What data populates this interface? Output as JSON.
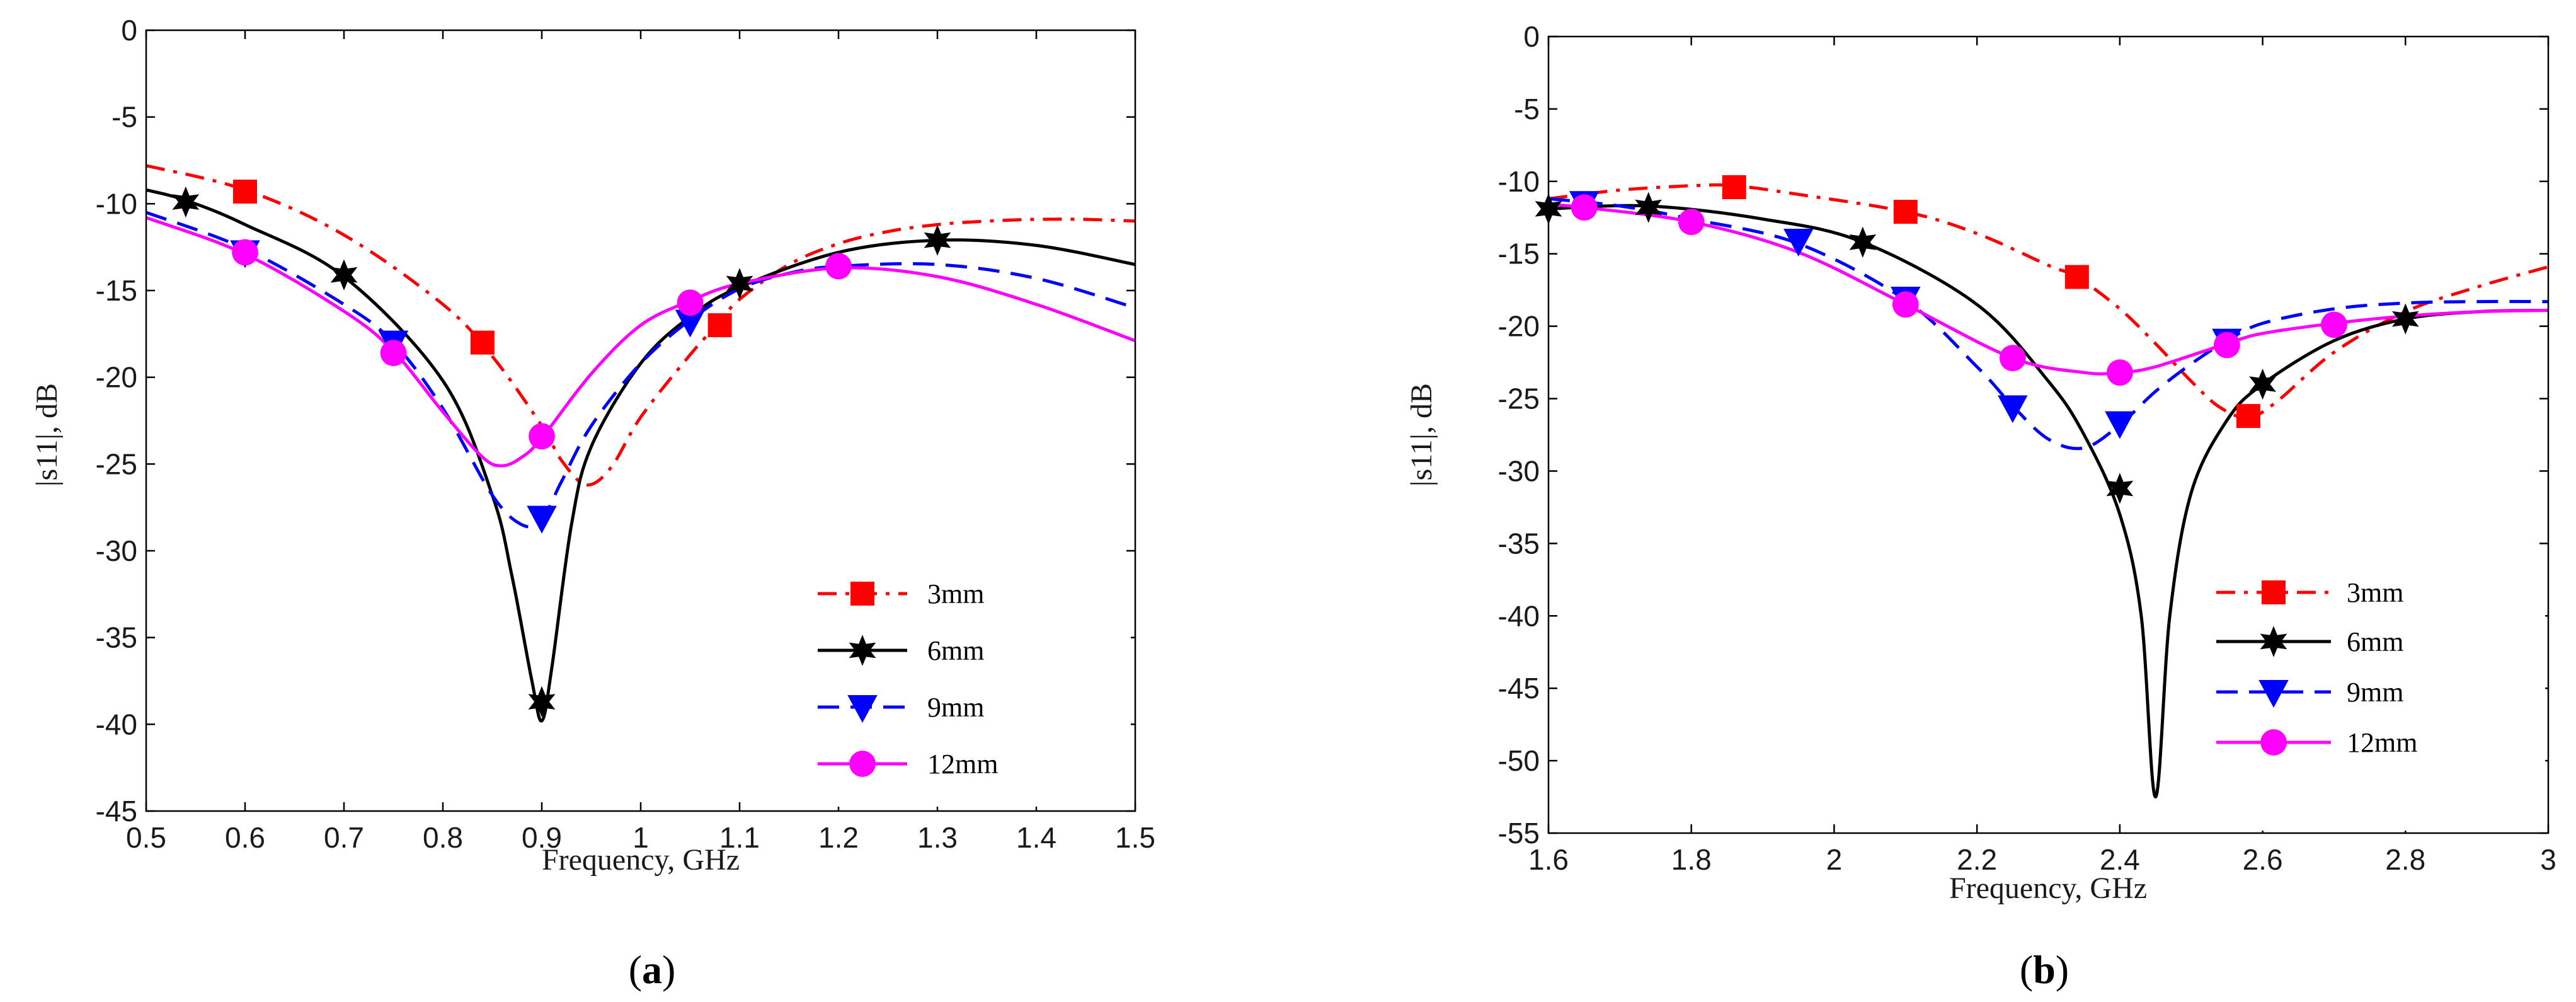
{
  "chart_data": [
    {
      "type": "line",
      "panel_label": "a",
      "title": "",
      "xlabel": "Frequency, GHz",
      "ylabel": "|s11|, dB",
      "xlim": [
        0.5,
        1.5
      ],
      "ylim": [
        -45,
        0
      ],
      "xticks": [
        0.5,
        0.6,
        0.7,
        0.8,
        0.9,
        1,
        1.1,
        1.2,
        1.3,
        1.4,
        1.5
      ],
      "xtick_labels": [
        "0.5",
        "0.6",
        "0.7",
        "0.8",
        "0.9",
        "1",
        "1.1",
        "1.2",
        "1.3",
        "1.4",
        "1.5"
      ],
      "yticks": [
        0,
        -5,
        -10,
        -15,
        -20,
        -25,
        -30,
        -35,
        -40,
        -45
      ],
      "ytick_labels": [
        "0",
        "-5",
        "-10",
        "-15",
        "-20",
        "-25",
        "-30",
        "-35",
        "-40",
        "-45"
      ],
      "legend_position": "bottom-right",
      "series": [
        {
          "name": "3mm",
          "color": "#ff0000",
          "dash": "dashdot",
          "marker": "square",
          "x": [
            0.5,
            0.6,
            0.7,
            0.8,
            0.85,
            0.9,
            0.92,
            0.945,
            0.97,
            1.0,
            1.05,
            1.08,
            1.1,
            1.15,
            1.2,
            1.25,
            1.3,
            1.35,
            1.4,
            1.45,
            1.5
          ],
          "y": [
            -7.8,
            -9.2,
            -11.8,
            -15.8,
            -18.8,
            -22.8,
            -24.8,
            -26.2,
            -25.2,
            -22.3,
            -18.7,
            -16.8,
            -15.5,
            -13.5,
            -12.3,
            -11.6,
            -11.2,
            -11.0,
            -10.9,
            -10.9,
            -11.0
          ],
          "markers_x": [
            0.6,
            0.84,
            1.08
          ],
          "markers_y": [
            -9.3,
            -18.0,
            -17.0
          ]
        },
        {
          "name": "6mm",
          "color": "#000000",
          "dash": "solid",
          "marker": "star",
          "x": [
            0.5,
            0.54,
            0.6,
            0.7,
            0.8,
            0.85,
            0.87,
            0.89,
            0.9,
            0.91,
            0.93,
            0.95,
            1.0,
            1.05,
            1.1,
            1.2,
            1.3,
            1.4,
            1.5
          ],
          "y": [
            -9.2,
            -9.8,
            -11.2,
            -14.2,
            -20.2,
            -26.8,
            -31.5,
            -37.5,
            -39.8,
            -36.8,
            -28.5,
            -24.0,
            -19.2,
            -16.5,
            -14.8,
            -12.8,
            -12.1,
            -12.4,
            -13.5
          ],
          "markers_x": [
            0.54,
            0.7,
            0.9,
            1.1,
            1.3
          ],
          "markers_y": [
            -9.9,
            -14.1,
            -38.7,
            -14.6,
            -12.1
          ]
        },
        {
          "name": "9mm",
          "color": "#0000ff",
          "dash": "dashed",
          "marker": "triangle-down",
          "x": [
            0.5,
            0.6,
            0.7,
            0.75,
            0.8,
            0.85,
            0.88,
            0.9,
            0.92,
            0.95,
            1.0,
            1.05,
            1.1,
            1.15,
            1.2,
            1.3,
            1.4,
            1.5
          ],
          "y": [
            -10.5,
            -12.6,
            -15.8,
            -18.0,
            -21.8,
            -26.8,
            -28.5,
            -28.2,
            -26.0,
            -22.8,
            -19.2,
            -16.7,
            -14.9,
            -14.0,
            -13.6,
            -13.5,
            -14.3,
            -16.0
          ],
          "markers_x": [
            0.6,
            0.75,
            0.9,
            1.05
          ],
          "markers_y": [
            -12.8,
            -18.0,
            -28.1,
            -16.8
          ]
        },
        {
          "name": "12mm",
          "color": "#ff00ff",
          "dash": "solid",
          "marker": "circle",
          "x": [
            0.5,
            0.6,
            0.7,
            0.75,
            0.8,
            0.84,
            0.86,
            0.88,
            0.9,
            0.95,
            1.0,
            1.05,
            1.1,
            1.2,
            1.3,
            1.4,
            1.5
          ],
          "y": [
            -10.8,
            -12.9,
            -16.2,
            -18.5,
            -22.0,
            -24.6,
            -25.1,
            -24.6,
            -23.5,
            -19.8,
            -17.0,
            -15.6,
            -14.6,
            -13.7,
            -14.2,
            -15.8,
            -17.9
          ],
          "markers_x": [
            0.6,
            0.75,
            0.9,
            1.05,
            1.2
          ],
          "markers_y": [
            -12.8,
            -18.6,
            -23.4,
            -15.7,
            -13.6
          ]
        }
      ]
    },
    {
      "type": "line",
      "panel_label": "b",
      "title": "",
      "xlabel": "Frequency, GHz",
      "ylabel": "|s11|, dB",
      "xlim": [
        1.6,
        3
      ],
      "ylim": [
        -55,
        0
      ],
      "xticks": [
        1.6,
        1.8,
        2,
        2.2,
        2.4,
        2.6,
        2.8,
        3
      ],
      "xtick_labels": [
        "1.6",
        "1.8",
        "2",
        "2.2",
        "2.4",
        "2.6",
        "2.8",
        "3"
      ],
      "yticks": [
        0,
        -5,
        -10,
        -15,
        -20,
        -25,
        -30,
        -35,
        -40,
        -45,
        -50,
        -55
      ],
      "ytick_labels": [
        "0",
        "-5",
        "-10",
        "-15",
        "-20",
        "-25",
        "-30",
        "-35",
        "-40",
        "-45",
        "-50",
        "-55"
      ],
      "legend_position": "bottom-right",
      "series": [
        {
          "name": "3mm",
          "color": "#ff0000",
          "dash": "dashdot",
          "marker": "square",
          "x": [
            1.6,
            1.7,
            1.8,
            1.86,
            1.95,
            2.1,
            2.2,
            2.3,
            2.34,
            2.4,
            2.45,
            2.5,
            2.54,
            2.58,
            2.62,
            2.7,
            2.8,
            2.9,
            3.0
          ],
          "y": [
            -11.2,
            -10.6,
            -10.3,
            -10.3,
            -10.9,
            -12.1,
            -13.6,
            -15.8,
            -16.6,
            -18.8,
            -21.2,
            -23.8,
            -25.6,
            -26.3,
            -25.2,
            -21.8,
            -19.0,
            -17.3,
            -15.9
          ],
          "markers_x": [
            1.86,
            2.1,
            2.34,
            2.58
          ],
          "markers_y": [
            -10.4,
            -12.1,
            -16.6,
            -26.2
          ]
        },
        {
          "name": "6mm",
          "color": "#000000",
          "dash": "solid",
          "marker": "star",
          "x": [
            1.6,
            1.74,
            1.9,
            2.04,
            2.2,
            2.3,
            2.35,
            2.4,
            2.43,
            2.45,
            2.47,
            2.5,
            2.55,
            2.6,
            2.7,
            2.8,
            2.9,
            3.0
          ],
          "y": [
            -11.9,
            -11.7,
            -12.6,
            -14.2,
            -18.5,
            -23.8,
            -27.5,
            -33.0,
            -40.0,
            -52.5,
            -40.0,
            -31.5,
            -26.5,
            -24.0,
            -21.0,
            -19.5,
            -19.0,
            -18.9
          ],
          "markers_x": [
            1.6,
            1.74,
            2.04,
            2.4,
            2.6,
            2.8
          ],
          "markers_y": [
            -11.9,
            -11.8,
            -14.2,
            -31.2,
            -24.0,
            -19.5
          ]
        },
        {
          "name": "9mm",
          "color": "#0000ff",
          "dash": "dashed",
          "marker": "triangle-down",
          "x": [
            1.6,
            1.7,
            1.8,
            1.95,
            2.1,
            2.2,
            2.25,
            2.3,
            2.35,
            2.4,
            2.45,
            2.5,
            2.55,
            2.6,
            2.7,
            2.8,
            2.9,
            3.0
          ],
          "y": [
            -11.2,
            -11.7,
            -12.6,
            -14.3,
            -18.2,
            -22.8,
            -25.5,
            -27.8,
            -28.4,
            -26.8,
            -24.5,
            -22.6,
            -21.0,
            -19.8,
            -18.8,
            -18.4,
            -18.3,
            -18.3
          ],
          "markers_x": [
            1.65,
            1.95,
            2.1,
            2.25,
            2.4,
            2.55
          ],
          "markers_y": [
            -11.5,
            -14.1,
            -18.1,
            -25.6,
            -26.7,
            -21.0
          ]
        },
        {
          "name": "12mm",
          "color": "#ff00ff",
          "dash": "solid",
          "marker": "circle",
          "x": [
            1.6,
            1.65,
            1.8,
            1.95,
            2.1,
            2.25,
            2.35,
            2.4,
            2.45,
            2.55,
            2.6,
            2.7,
            2.8,
            2.9,
            3.0
          ],
          "y": [
            -11.6,
            -11.8,
            -12.8,
            -14.9,
            -18.5,
            -22.2,
            -23.2,
            -23.2,
            -22.8,
            -21.2,
            -20.5,
            -19.8,
            -19.3,
            -19.0,
            -18.9
          ],
          "markers_x": [
            1.65,
            1.8,
            2.1,
            2.25,
            2.4,
            2.55,
            2.7
          ],
          "markers_y": [
            -11.8,
            -12.8,
            -18.5,
            -22.2,
            -23.2,
            -21.3,
            -19.9
          ]
        }
      ]
    }
  ]
}
